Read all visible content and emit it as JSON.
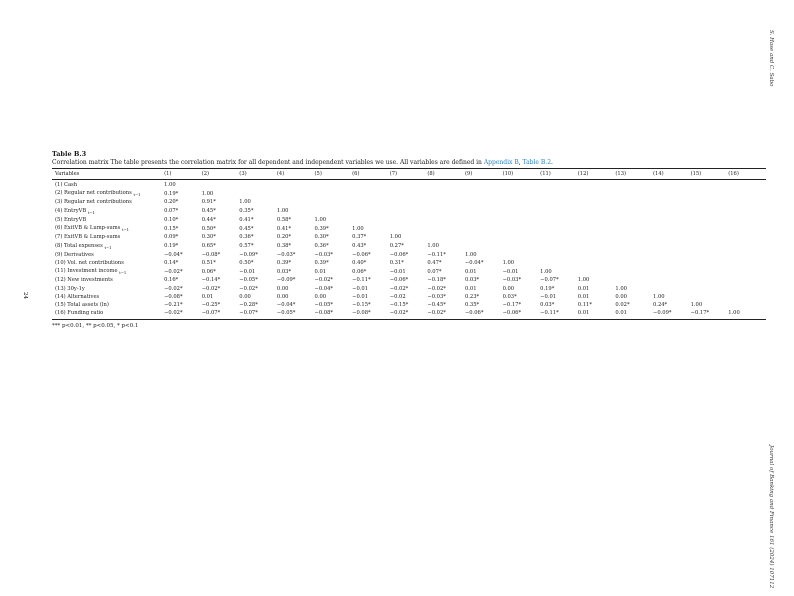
{
  "side": {
    "authors": "S. Hase and C. Sabo",
    "journal": "Journal of Banking and Finance 161 (2024) 107112",
    "page_number": "24"
  },
  "table": {
    "label": "Table B.3",
    "caption_text": "Correlation matrix The table presents the correlation matrix for all dependent and independent variables we use. All variables are defined in ",
    "caption_link1": "Appendix B",
    "caption_sep": ", ",
    "caption_link2": "Table B.2",
    "caption_end": ".",
    "columns": [
      "Variables",
      "(1)",
      "(2)",
      "(3)",
      "(4)",
      "(5)",
      "(6)",
      "(7)",
      "(8)",
      "(9)",
      "(10)",
      "(11)",
      "(12)",
      "(13)",
      "(14)",
      "(15)",
      "(16)"
    ],
    "rows": [
      {
        "label": "(1) Cash",
        "sub": "",
        "values": [
          "1.00"
        ]
      },
      {
        "label": "(2) Regular net contributions",
        "sub": "t−1",
        "values": [
          "0.19*",
          "1.00"
        ]
      },
      {
        "label": "(3) Regular net contributions",
        "sub": "",
        "values": [
          "0.20*",
          "0.91*",
          "1.00"
        ]
      },
      {
        "label": "(4) EntryVB",
        "sub": "t−1",
        "values": [
          "0.07*",
          "0.45*",
          "0.35*",
          "1.00"
        ]
      },
      {
        "label": "(5) EntryVB",
        "sub": "",
        "values": [
          "0.10*",
          "0.44*",
          "0.41*",
          "0.58*",
          "1.00"
        ]
      },
      {
        "label": "(6) ExitVB & Lump-sums",
        "sub": "t−1",
        "values": [
          "0.15*",
          "0.50*",
          "0.45*",
          "0.41*",
          "0.39*",
          "1.00"
        ]
      },
      {
        "label": "(7) ExitVB & Lump-sums",
        "sub": "",
        "values": [
          "0.09*",
          "0.30*",
          "0.36*",
          "0.20*",
          "0.30*",
          "0.37*",
          "1.00"
        ]
      },
      {
        "label": "(8) Total expenses",
        "sub": "t−1",
        "values": [
          "0.19*",
          "0.65*",
          "0.57*",
          "0.38*",
          "0.36*",
          "0.43*",
          "0.27*",
          "1.00"
        ]
      },
      {
        "label": "(9) Derivatives",
        "sub": "",
        "values": [
          "−0.04*",
          "−0.08*",
          "−0.09*",
          "−0.03*",
          "−0.03*",
          "−0.06*",
          "−0.06*",
          "−0.11*",
          "1.00"
        ]
      },
      {
        "label": "(10) Vol. net contributions",
        "sub": "",
        "values": [
          "0.14*",
          "0.51*",
          "0.50*",
          "0.39*",
          "0.39*",
          "0.40*",
          "0.31*",
          "0.47*",
          "−0.04*",
          "1.00"
        ]
      },
      {
        "label": "(11) Investment income",
        "sub": "t−1",
        "values": [
          "−0.02*",
          "0.06*",
          "−0.01",
          "0.03*",
          "0.01",
          "0.06*",
          "−0.01",
          "0.07*",
          "0.01",
          "−0.01",
          "1.00"
        ]
      },
      {
        "label": "(12) New investments",
        "sub": "",
        "values": [
          "0.16*",
          "−0.14*",
          "−0.05*",
          "−0.09*",
          "−0.02*",
          "−0.11*",
          "−0.06*",
          "−0.18*",
          "0.03*",
          "−0.03*",
          "−0.07*",
          "1.00"
        ]
      },
      {
        "label": "(13) 30y-1y",
        "sub": "",
        "values": [
          "−0.02*",
          "−0.02*",
          "−0.02*",
          "0.00",
          "−0.04*",
          "−0.01",
          "−0.02*",
          "−0.02*",
          "0.01",
          "0.00",
          "0.19*",
          "0.01",
          "1.00"
        ]
      },
      {
        "label": "(14) Alternatives",
        "sub": "",
        "values": [
          "−0.08*",
          "0.01",
          "0.00",
          "0.00",
          "0.00",
          "−0.01",
          "−0.02",
          "−0.03*",
          "0.23*",
          "0.03*",
          "−0.01",
          "0.01",
          "0.00",
          "1.00"
        ]
      },
      {
        "label": "(15) Total assets (ln)",
        "sub": "",
        "values": [
          "−0.21*",
          "−0.25*",
          "−0.28*",
          "−0.04*",
          "−0.05*",
          "−0.15*",
          "−0.15*",
          "−0.45*",
          "0.35*",
          "−0.17*",
          "0.03*",
          "0.11*",
          "0.02*",
          "0.24*",
          "1.00"
        ]
      },
      {
        "label": "(16) Funding ratio",
        "sub": "",
        "values": [
          "−0.02*",
          "−0.07*",
          "−0.07*",
          "−0.05*",
          "−0.08*",
          "−0.08*",
          "−0.02*",
          "−0.02*",
          "−0.06*",
          "−0.06*",
          "−0.11*",
          "0.01",
          "0.01",
          "−0.09*",
          "−0.17*",
          "1.00"
        ]
      }
    ],
    "footnote": "*** p<0.01, ** p<0.05, * p<0.1"
  }
}
